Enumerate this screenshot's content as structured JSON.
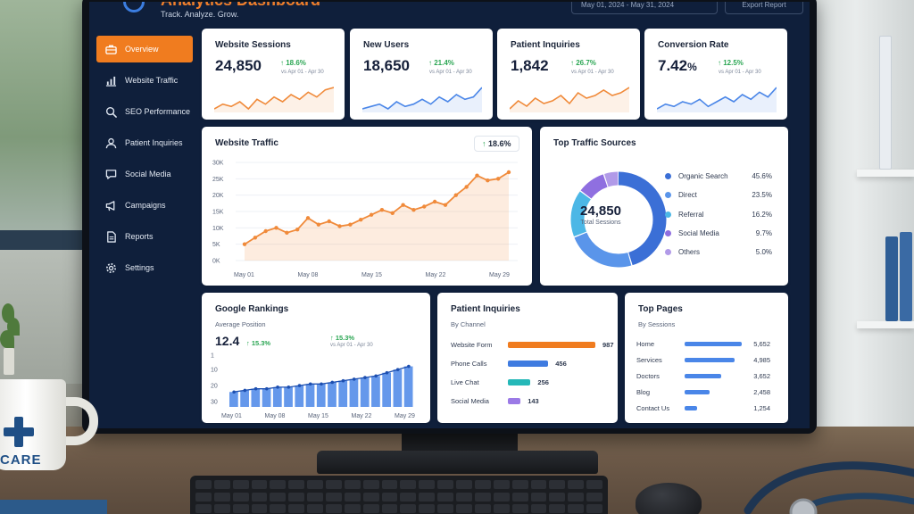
{
  "header": {
    "title": "Analytics Dashboard",
    "tagline": "Track. Analyze. Grow.",
    "date_range": "May 01, 2024 - May 31, 2024",
    "export_label": "Export Report"
  },
  "sidebar": {
    "items": [
      {
        "label": "Overview",
        "icon": "briefcase-icon",
        "active": true
      },
      {
        "label": "Website Traffic",
        "icon": "bar-chart-icon",
        "active": false
      },
      {
        "label": "SEO Performance",
        "icon": "search-icon",
        "active": false
      },
      {
        "label": "Patient Inquiries",
        "icon": "user-icon",
        "active": false
      },
      {
        "label": "Social Media",
        "icon": "chat-bubble-icon",
        "active": false
      },
      {
        "label": "Campaigns",
        "icon": "megaphone-icon",
        "active": false
      },
      {
        "label": "Reports",
        "icon": "document-icon",
        "active": false
      },
      {
        "label": "Settings",
        "icon": "gear-icon",
        "active": false
      }
    ]
  },
  "kpis": [
    {
      "title": "Website Sessions",
      "value": "24,850",
      "unit": "",
      "change": "↑ 18.6%",
      "compare": "vs Apr 01 - Apr 30",
      "color": "#f08a3a",
      "trend": [
        3,
        5,
        4,
        6,
        3,
        7,
        5,
        8,
        6,
        9,
        7,
        10,
        8,
        11,
        12
      ]
    },
    {
      "title": "New Users",
      "value": "18,650",
      "unit": "",
      "change": "↑ 21.4%",
      "compare": "vs Apr 01 - Apr 30",
      "color": "#4a86e8",
      "trend": [
        3,
        4,
        5,
        3,
        6,
        4,
        5,
        7,
        5,
        8,
        6,
        9,
        7,
        8,
        12
      ]
    },
    {
      "title": "Patient Inquiries",
      "value": "1,842",
      "unit": "",
      "change": "↑ 26.7%",
      "compare": "vs Apr 01 - Apr 30",
      "color": "#f08a3a",
      "trend": [
        3,
        6,
        4,
        7,
        5,
        6,
        8,
        5,
        9,
        7,
        8,
        10,
        8,
        9,
        11
      ]
    },
    {
      "title": "Conversion Rate",
      "value": "7.42",
      "unit": "%",
      "change": "↑ 12.5%",
      "compare": "vs Apr 01 - Apr 30",
      "color": "#4a86e8",
      "trend": [
        3,
        5,
        4,
        6,
        5,
        7,
        4,
        6,
        8,
        6,
        9,
        7,
        10,
        8,
        12
      ]
    }
  ],
  "traffic": {
    "title": "Website Traffic",
    "change_arrow": "↑",
    "change": "18.6%",
    "chart_data": {
      "type": "area",
      "y_ticks": [
        "30K",
        "25K",
        "20K",
        "15K",
        "10K",
        "5K",
        "0K"
      ],
      "x_ticks": [
        "May 01",
        "May 08",
        "May 15",
        "May 22",
        "May 29"
      ],
      "ylim": [
        0,
        30000
      ],
      "values": [
        5000,
        7000,
        9000,
        10000,
        8500,
        9500,
        13000,
        11000,
        12000,
        10500,
        11000,
        12500,
        14000,
        15500,
        14500,
        17000,
        15500,
        16500,
        18000,
        17000,
        20000,
        22500,
        26000,
        24500,
        25000,
        27000
      ],
      "color": "#f08a3a"
    }
  },
  "sources": {
    "title": "Top Traffic Sources",
    "total": "24,850",
    "total_label": "Total Sessions",
    "chart_data": {
      "type": "pie",
      "items": [
        {
          "name": "Organic Search",
          "value": "45.6%",
          "share": 45.6,
          "color": "#3b6fd6"
        },
        {
          "name": "Direct",
          "value": "23.5%",
          "share": 23.5,
          "color": "#5a95ea"
        },
        {
          "name": "Referral",
          "value": "16.2%",
          "share": 16.2,
          "color": "#4cb7e6"
        },
        {
          "name": "Social Media",
          "value": "9.7%",
          "share": 9.7,
          "color": "#8f6fe0"
        },
        {
          "name": "Others",
          "value": "5.0%",
          "share": 5.0,
          "color": "#b19ae8"
        }
      ]
    }
  },
  "rankings": {
    "title": "Google Rankings",
    "subtitle": "Average Position",
    "value": "12.4",
    "value_change": "↑ 15.3%",
    "change": "↑ 15.3%",
    "compare": "vs Apr 01 - Apr 30",
    "chart_data": {
      "type": "bar",
      "y_ticks": [
        "1",
        "10",
        "20",
        "30"
      ],
      "x_ticks": [
        "May 01",
        "May 08",
        "May 15",
        "May 22",
        "May 29"
      ],
      "values": [
        24,
        23,
        22,
        22,
        21,
        21,
        20,
        19,
        19,
        18,
        17,
        16,
        15,
        14,
        12,
        10,
        8
      ],
      "ylim": [
        1,
        30
      ],
      "bar_color": "#4a86e8",
      "line_color": "#1d4fb0"
    }
  },
  "inquiries": {
    "title": "Patient Inquiries",
    "subtitle": "By Channel",
    "chart_data": {
      "type": "bar",
      "items": [
        {
          "name": "Website Form",
          "value": "987",
          "count": 987,
          "color": "#f07c1f"
        },
        {
          "name": "Phone Calls",
          "value": "456",
          "count": 456,
          "color": "#3f7be0"
        },
        {
          "name": "Live Chat",
          "value": "256",
          "count": 256,
          "color": "#25b8b8"
        },
        {
          "name": "Social Media",
          "value": "143",
          "count": 143,
          "color": "#9b7ae6"
        }
      ]
    }
  },
  "top_pages": {
    "title": "Top Pages",
    "subtitle": "By Sessions",
    "chart_data": {
      "type": "bar",
      "items": [
        {
          "name": "Home",
          "value": "5,652",
          "count": 5652
        },
        {
          "name": "Services",
          "value": "4,985",
          "count": 4985
        },
        {
          "name": "Doctors",
          "value": "3,652",
          "count": 3652
        },
        {
          "name": "Blog",
          "value": "2,458",
          "count": 2458
        },
        {
          "name": "Contact Us",
          "value": "1,254",
          "count": 1254
        }
      ]
    }
  },
  "mug": {
    "text": "CARE"
  }
}
